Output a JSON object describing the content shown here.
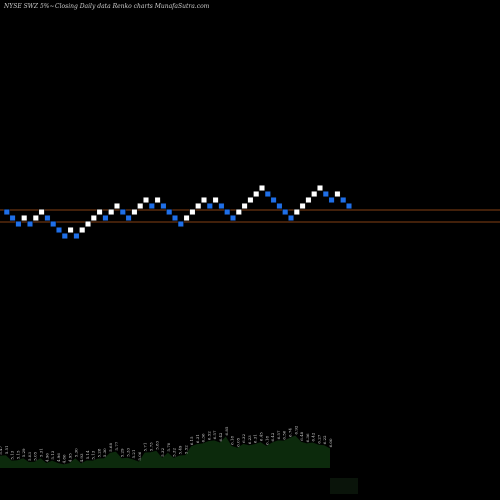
{
  "header": {
    "left": "NYSE SWZ 5%~",
    "right": "Closing Daily data  Renko  charts MunafaSutra.com"
  },
  "colors": {
    "background": "#000000",
    "up_brick": "#ffffff",
    "down_brick": "#1f6fe8",
    "ref_line": "#b2551c",
    "volume_fill": "#0c2a0c",
    "volume_fill_dark": "#0a140a"
  },
  "chart_data": {
    "type": "renko",
    "title": "NYSE SWZ 5%~ Closing Daily data Renko charts MunafaSutra.com",
    "reference_lines": [
      5.4,
      4.9
    ],
    "bricks": [
      {
        "dir": "down",
        "level": 5.4
      },
      {
        "dir": "down",
        "level": 5.1
      },
      {
        "dir": "down",
        "level": 4.8
      },
      {
        "dir": "up",
        "level": 5.1
      },
      {
        "dir": "down",
        "level": 4.8
      },
      {
        "dir": "up",
        "level": 5.1
      },
      {
        "dir": "up",
        "level": 5.4
      },
      {
        "dir": "down",
        "level": 5.1
      },
      {
        "dir": "down",
        "level": 4.8
      },
      {
        "dir": "down",
        "level": 4.5
      },
      {
        "dir": "down",
        "level": 4.2
      },
      {
        "dir": "up",
        "level": 4.5
      },
      {
        "dir": "down",
        "level": 4.2
      },
      {
        "dir": "up",
        "level": 4.5
      },
      {
        "dir": "up",
        "level": 4.8
      },
      {
        "dir": "up",
        "level": 5.1
      },
      {
        "dir": "up",
        "level": 5.4
      },
      {
        "dir": "down",
        "level": 5.1
      },
      {
        "dir": "up",
        "level": 5.4
      },
      {
        "dir": "up",
        "level": 5.7
      },
      {
        "dir": "down",
        "level": 5.4
      },
      {
        "dir": "down",
        "level": 5.1
      },
      {
        "dir": "up",
        "level": 5.4
      },
      {
        "dir": "up",
        "level": 5.7
      },
      {
        "dir": "up",
        "level": 6.0
      },
      {
        "dir": "down",
        "level": 5.7
      },
      {
        "dir": "up",
        "level": 6.0
      },
      {
        "dir": "down",
        "level": 5.7
      },
      {
        "dir": "down",
        "level": 5.4
      },
      {
        "dir": "down",
        "level": 5.1
      },
      {
        "dir": "down",
        "level": 4.8
      },
      {
        "dir": "up",
        "level": 5.1
      },
      {
        "dir": "up",
        "level": 5.4
      },
      {
        "dir": "up",
        "level": 5.7
      },
      {
        "dir": "up",
        "level": 6.0
      },
      {
        "dir": "down",
        "level": 5.7
      },
      {
        "dir": "up",
        "level": 6.0
      },
      {
        "dir": "down",
        "level": 5.7
      },
      {
        "dir": "down",
        "level": 5.4
      },
      {
        "dir": "down",
        "level": 5.1
      },
      {
        "dir": "up",
        "level": 5.4
      },
      {
        "dir": "up",
        "level": 5.7
      },
      {
        "dir": "up",
        "level": 6.0
      },
      {
        "dir": "up",
        "level": 6.3
      },
      {
        "dir": "up",
        "level": 6.6
      },
      {
        "dir": "down",
        "level": 6.3
      },
      {
        "dir": "down",
        "level": 6.0
      },
      {
        "dir": "down",
        "level": 5.7
      },
      {
        "dir": "down",
        "level": 5.4
      },
      {
        "dir": "down",
        "level": 5.1
      },
      {
        "dir": "up",
        "level": 5.4
      },
      {
        "dir": "up",
        "level": 5.7
      },
      {
        "dir": "up",
        "level": 6.0
      },
      {
        "dir": "up",
        "level": 6.3
      },
      {
        "dir": "up",
        "level": 6.6
      },
      {
        "dir": "down",
        "level": 6.3
      },
      {
        "dir": "down",
        "level": 6.0
      },
      {
        "dir": "up",
        "level": 6.3
      },
      {
        "dir": "down",
        "level": 6.0
      },
      {
        "dir": "down",
        "level": 5.7
      }
    ],
    "volume_labels": [
      "5.47",
      "5.51",
      "5.13",
      "5.15",
      "5.29",
      "5.03",
      "5.05",
      "5.31",
      "4.96",
      "5.13",
      "4.96",
      "4.86",
      "4.95",
      "5.30",
      "4.93",
      "5.14",
      "5.13",
      "5.28",
      "5.30",
      "5.68",
      "5.77",
      "5.29",
      "5.33",
      "5.21",
      "5.06",
      "5.71",
      "5.73",
      "5.83",
      "5.32",
      "5.70",
      "5.32",
      "5.49",
      "5.52",
      "6.15",
      "6.31",
      "6.36",
      "6.52",
      "6.57",
      "6.42",
      "6.85",
      "6.18",
      "6.05",
      "6.32",
      "6.23",
      "6.31",
      "6.45",
      "6.18",
      "6.42",
      "6.57",
      "6.56",
      "6.74",
      "6.92",
      "6.48",
      "6.36",
      "6.42",
      "6.27",
      "6.22",
      "6.00"
    ]
  }
}
